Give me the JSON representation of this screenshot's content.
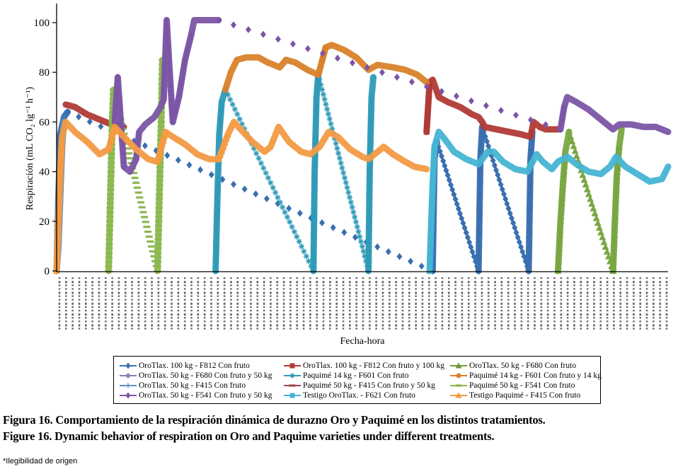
{
  "chart_data": {
    "type": "scatter",
    "title": "",
    "xlabel": "Fecha-hora",
    "ylabel": "Respiración (mL CO₂ lg⁻¹ h⁻¹)",
    "ylim": [
      0,
      100
    ],
    "yticks": [
      0,
      20,
      40,
      60,
      80,
      100
    ],
    "xlim": [
      0,
      100
    ],
    "x_note": "x tick labels (date-time stamps) illegible in source; x expressed as relative time index 0-100",
    "grid": false,
    "legend_position": "bottom",
    "series": [
      {
        "name": "OroTlax. 100 kg - F812 Con fruto",
        "color": "#3a6fb0",
        "marker": "diamond",
        "points": [
          [
            0,
            0
          ],
          [
            0.3,
            30
          ],
          [
            0.6,
            55
          ],
          [
            1.2,
            62
          ],
          [
            1.8,
            64
          ],
          [
            61.5,
            0
          ],
          [
            61.8,
            45
          ],
          [
            62.2,
            52
          ],
          [
            69,
            0
          ],
          [
            69.3,
            45
          ],
          [
            69.6,
            58
          ],
          [
            77.2,
            0
          ],
          [
            77.5,
            45
          ],
          [
            77.8,
            56
          ]
        ]
      },
      {
        "name": "OroTlax. 100 kg - F812 Con fruto y 100 kg",
        "color": "#b03a35",
        "marker": "square",
        "points": [
          [
            1.5,
            67
          ],
          [
            3,
            66
          ],
          [
            5,
            63
          ],
          [
            7,
            61
          ],
          [
            9,
            59
          ],
          [
            11,
            58
          ],
          [
            60.5,
            56
          ],
          [
            61,
            76
          ],
          [
            61.5,
            77
          ],
          [
            62.5,
            70
          ],
          [
            64,
            68
          ],
          [
            66,
            66
          ],
          [
            68,
            63
          ],
          [
            69,
            62
          ],
          [
            69.6,
            60
          ],
          [
            70,
            58
          ],
          [
            72,
            57
          ],
          [
            74,
            56
          ],
          [
            76,
            55
          ],
          [
            77.5,
            54
          ],
          [
            78,
            60
          ],
          [
            79,
            58
          ],
          [
            80,
            57
          ],
          [
            82,
            57
          ]
        ]
      },
      {
        "name": "OroTlax. 50 kg - F680 Con fruto",
        "color": "#7aa642",
        "marker": "triangle",
        "points": [
          [
            82,
            0
          ],
          [
            82.4,
            20
          ],
          [
            82.8,
            35
          ],
          [
            83.2,
            48
          ],
          [
            83.8,
            56
          ],
          [
            91,
            0
          ],
          [
            91.3,
            20
          ],
          [
            91.6,
            38
          ],
          [
            92,
            50
          ],
          [
            92.4,
            57
          ]
        ]
      },
      {
        "name": "OroTlax. 50 kg - F680 Con fruto y 50 kg",
        "color": "#8a7bb0",
        "marker": "x",
        "points": []
      },
      {
        "name": "Paquimé 14 kg - F601 Con fruto",
        "color": "#2e9ab8",
        "marker": "star",
        "points": [
          [
            26,
            0
          ],
          [
            26.3,
            30
          ],
          [
            26.6,
            55
          ],
          [
            27,
            68
          ],
          [
            27.6,
            73
          ],
          [
            42,
            0
          ],
          [
            42.2,
            40
          ],
          [
            42.5,
            70
          ],
          [
            42.8,
            79
          ],
          [
            51,
            0
          ],
          [
            51.2,
            40
          ],
          [
            51.5,
            70
          ],
          [
            51.8,
            78
          ]
        ]
      },
      {
        "name": "Paquimé 14 kg - F601 Con fruto y 14 kg",
        "color": "#d9822b",
        "marker": "circle",
        "points": [
          [
            27.6,
            73
          ],
          [
            28.5,
            80
          ],
          [
            29.5,
            85
          ],
          [
            31,
            86
          ],
          [
            33,
            86
          ],
          [
            34.5,
            84
          ],
          [
            36.5,
            82
          ],
          [
            37.5,
            85
          ],
          [
            39,
            84
          ],
          [
            41,
            81
          ],
          [
            42.8,
            79
          ],
          [
            44,
            90
          ],
          [
            45,
            91
          ],
          [
            47,
            89
          ],
          [
            49,
            86
          ],
          [
            51,
            81
          ],
          [
            52.5,
            83
          ],
          [
            55,
            82
          ],
          [
            57,
            81
          ],
          [
            59,
            79
          ],
          [
            60.5,
            76
          ]
        ]
      },
      {
        "name": "OroTlax. 50 kg - F415 Con fruto",
        "color": "#5b8fc7",
        "marker": "plus",
        "points": [
          [
            0,
            0
          ],
          [
            0.3,
            10
          ],
          [
            0.6,
            30
          ],
          [
            0.9,
            50
          ],
          [
            1.2,
            60
          ]
        ]
      },
      {
        "name": "Paquimé 50 kg - F415 Con fruto y 50 kg",
        "color": "#9c4a48",
        "marker": "dash",
        "points": []
      },
      {
        "name": "Paquimé 50 kg - F541 Con fruto",
        "color": "#8ab84e",
        "marker": "dash",
        "points": [
          [
            8.5,
            0
          ],
          [
            8.7,
            20
          ],
          [
            8.9,
            40
          ],
          [
            9.1,
            60
          ],
          [
            9.3,
            73
          ],
          [
            16.5,
            0
          ],
          [
            16.7,
            20
          ],
          [
            16.9,
            40
          ],
          [
            17.1,
            60
          ],
          [
            17.3,
            85
          ]
        ]
      },
      {
        "name": "OroTlax. 50 kg - F541 Con fruto y 50 kg",
        "color": "#7b55a6",
        "marker": "diamond",
        "points": [
          [
            9.5,
            60
          ],
          [
            10,
            78
          ],
          [
            10.5,
            60
          ],
          [
            11,
            42
          ],
          [
            12,
            40
          ],
          [
            13,
            45
          ],
          [
            13.5,
            56
          ],
          [
            14.5,
            59
          ],
          [
            16,
            62
          ],
          [
            17,
            66
          ],
          [
            17.5,
            69
          ],
          [
            18,
            101
          ],
          [
            18.5,
            80
          ],
          [
            19,
            60
          ],
          [
            20,
            70
          ],
          [
            21,
            85
          ],
          [
            22,
            95
          ],
          [
            22.5,
            101
          ],
          [
            25,
            101
          ],
          [
            26.5,
            101
          ],
          [
            82.4,
            57
          ],
          [
            83,
            66
          ],
          [
            83.5,
            70
          ],
          [
            85,
            68
          ],
          [
            87,
            65
          ],
          [
            89,
            61
          ],
          [
            91,
            57
          ],
          [
            92,
            59
          ],
          [
            94,
            59
          ],
          [
            96,
            58
          ],
          [
            98,
            58
          ],
          [
            100,
            56
          ]
        ]
      },
      {
        "name": "Testigo OroTlax. - F621 Con fruto",
        "color": "#45b4d3",
        "marker": "square",
        "points": [
          [
            61,
            0
          ],
          [
            61.2,
            15
          ],
          [
            61.5,
            35
          ],
          [
            61.8,
            50
          ],
          [
            62.5,
            56
          ],
          [
            63.5,
            53
          ],
          [
            65,
            48
          ],
          [
            67,
            45
          ],
          [
            69,
            43
          ],
          [
            70.5,
            48
          ],
          [
            71.5,
            48
          ],
          [
            73,
            44
          ],
          [
            75,
            41
          ],
          [
            77,
            40
          ],
          [
            78.5,
            47
          ],
          [
            79.5,
            44
          ],
          [
            81,
            41
          ],
          [
            82,
            44
          ],
          [
            83.5,
            46
          ],
          [
            85,
            43
          ],
          [
            87,
            40
          ],
          [
            89,
            39
          ],
          [
            90.5,
            42
          ],
          [
            91.5,
            46
          ],
          [
            93,
            42
          ],
          [
            95,
            39
          ],
          [
            97,
            36
          ],
          [
            99,
            37
          ],
          [
            100,
            42
          ]
        ]
      },
      {
        "name": "Testigo Paquimé - F415 Con fruto",
        "color": "#f39a43",
        "marker": "triangle",
        "points": [
          [
            0,
            0
          ],
          [
            0.3,
            20
          ],
          [
            0.6,
            40
          ],
          [
            0.9,
            54
          ],
          [
            1.5,
            60
          ],
          [
            3,
            56
          ],
          [
            5,
            52
          ],
          [
            7,
            47
          ],
          [
            8.5,
            49
          ],
          [
            9.5,
            58
          ],
          [
            11,
            54
          ],
          [
            13,
            49
          ],
          [
            15,
            45
          ],
          [
            16.5,
            44
          ],
          [
            17.8,
            56
          ],
          [
            19,
            54
          ],
          [
            21,
            51
          ],
          [
            23,
            47
          ],
          [
            25,
            45
          ],
          [
            26.5,
            45
          ],
          [
            28,
            55
          ],
          [
            29,
            60
          ],
          [
            30.5,
            56
          ],
          [
            32,
            52
          ],
          [
            34,
            48
          ],
          [
            35,
            50
          ],
          [
            36.3,
            58
          ],
          [
            38,
            52
          ],
          [
            40,
            48
          ],
          [
            41.5,
            47
          ],
          [
            43,
            50
          ],
          [
            44.5,
            56
          ],
          [
            46,
            54
          ],
          [
            48,
            49
          ],
          [
            50,
            46
          ],
          [
            51,
            45
          ],
          [
            53.5,
            50
          ],
          [
            55,
            47
          ],
          [
            57,
            44
          ],
          [
            58.5,
            42
          ],
          [
            60.5,
            41
          ]
        ]
      }
    ]
  },
  "legend": {
    "items": [
      {
        "label": "OroTlax. 100 kg - F812 Con fruto",
        "color": "#3a6fb0",
        "marker": "diamond"
      },
      {
        "label": "OroTlax. 50 kg - F680 Con fruto y 50 kg",
        "color": "#8a7bb0",
        "marker": "x"
      },
      {
        "label": "OroTlax. 50 kg - F415 Con fruto",
        "color": "#5b8fc7",
        "marker": "plus"
      },
      {
        "label": "OroTlax. 50 kg - F541 Con fruto y 50 kg",
        "color": "#7b55a6",
        "marker": "diamond"
      },
      {
        "label": "OroTlax. 100 kg - F812 Con fruto y 100 kg",
        "color": "#b03a35",
        "marker": "square"
      },
      {
        "label": "Paquimé 14 kg - F601 Con fruto",
        "color": "#2e9ab8",
        "marker": "star"
      },
      {
        "label": "Paquimé 50 kg - F415 Con fruto y 50 kg",
        "color": "#9c4a48",
        "marker": "dash"
      },
      {
        "label": "Testigo OroTlax. - F621 Con fruto",
        "color": "#45b4d3",
        "marker": "square"
      },
      {
        "label": "OroTlax. 50 kg - F680 Con fruto",
        "color": "#6f9a3c",
        "marker": "triangle"
      },
      {
        "label": "Paquimé 14 kg - F601 Con fruto y 14 kg",
        "color": "#d9822b",
        "marker": "circle"
      },
      {
        "label": "Paquimé 50 kg - F541 Con fruto",
        "color": "#8ab84e",
        "marker": "dash"
      },
      {
        "label": "Testigo Paquimé - F415 Con fruto",
        "color": "#f39a43",
        "marker": "triangle"
      }
    ]
  },
  "caption": {
    "es": "Figura 16. Comportamiento de la respiración dinámica de durazno Oro y Paquimé en los distintos tratamientos.",
    "en": "Figure 16. Dynamic behavior of respiration on Oro and Paquime varieties under different treatments."
  },
  "footnote": "*Ilegibilidad de origen"
}
